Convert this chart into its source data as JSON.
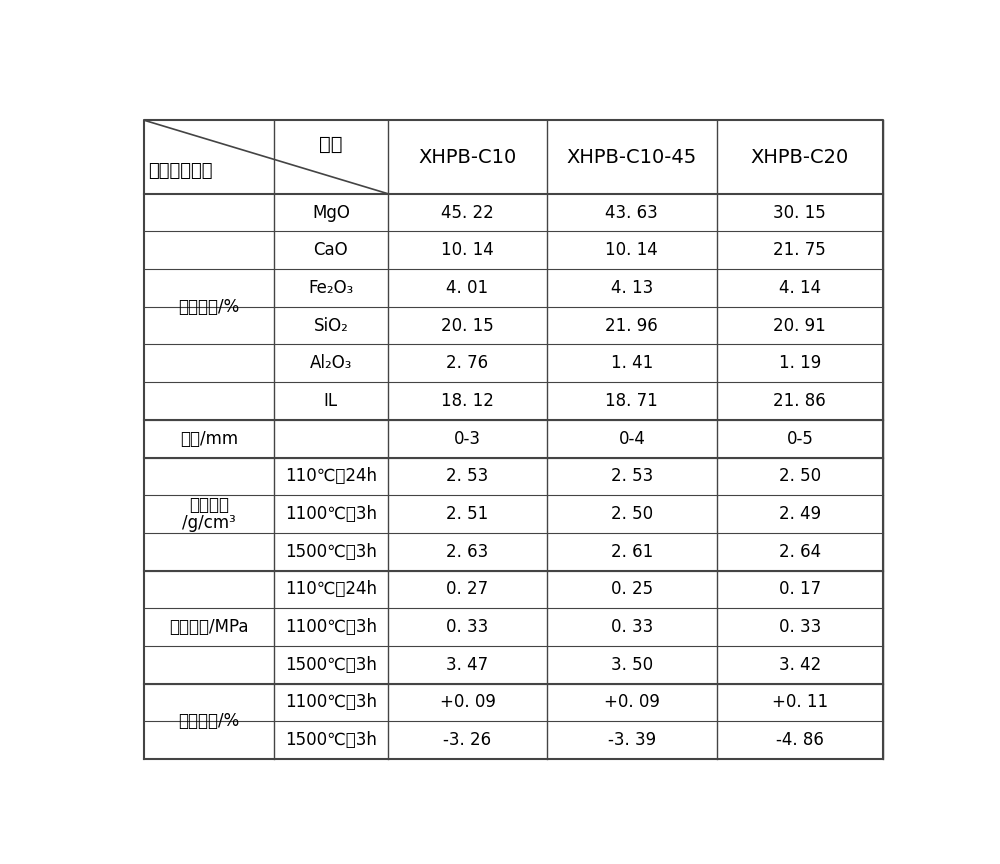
{
  "header_label_top": "牌号",
  "header_label_bottom": "检测项目指标",
  "col_headers": [
    "XHPB-C10",
    "XHPB-C10-45",
    "XHPB-C20"
  ],
  "sections": [
    {
      "section_label": "化学成分/%",
      "rows": [
        {
          "sub_label": "MgO",
          "values": [
            "45. 22",
            "43. 63",
            "30. 15"
          ]
        },
        {
          "sub_label": "CaO",
          "values": [
            "10. 14",
            "10. 14",
            "21. 75"
          ]
        },
        {
          "sub_label": "Fe₂O₃",
          "values": [
            "4. 01",
            "4. 13",
            "4. 14"
          ]
        },
        {
          "sub_label": "SiO₂",
          "values": [
            "20. 15",
            "21. 96",
            "20. 91"
          ]
        },
        {
          "sub_label": "Al₂O₃",
          "values": [
            "2. 76",
            "1. 41",
            "1. 19"
          ]
        },
        {
          "sub_label": "IL",
          "values": [
            "18. 12",
            "18. 71",
            "21. 86"
          ]
        }
      ]
    },
    {
      "section_label": "粒度/mm",
      "rows": [
        {
          "sub_label": "",
          "values": [
            "0-3",
            "0-4",
            "0-5"
          ]
        }
      ]
    },
    {
      "section_label": "体积密度/g/cm³",
      "rows": [
        {
          "sub_label": "110℃，24h",
          "values": [
            "2. 53",
            "2. 53",
            "2. 50"
          ]
        },
        {
          "sub_label": "1100℃，3h",
          "values": [
            "2. 51",
            "2. 50",
            "2. 49"
          ]
        },
        {
          "sub_label": "1500℃，3h",
          "values": [
            "2. 63",
            "2. 61",
            "2. 64"
          ]
        }
      ]
    },
    {
      "section_label": "抗折强度/MPa",
      "rows": [
        {
          "sub_label": "110℃，24h",
          "values": [
            "0. 27",
            "0. 25",
            "0. 17"
          ]
        },
        {
          "sub_label": "1100℃，3h",
          "values": [
            "0. 33",
            "0. 33",
            "0. 33"
          ]
        },
        {
          "sub_label": "1500℃，3h",
          "values": [
            "3. 47",
            "3. 50",
            "3. 42"
          ]
        }
      ]
    },
    {
      "section_label": "线变化率/%",
      "rows": [
        {
          "sub_label": "1100℃，3h",
          "values": [
            "+0. 09",
            "+0. 09",
            "+0. 11"
          ]
        },
        {
          "sub_label": "1500℃，3h",
          "values": [
            "-3. 26",
            "-3. 39",
            "-4. 86"
          ]
        }
      ]
    }
  ],
  "bg_color": "#ffffff",
  "line_color": "#444444",
  "text_color": "#000000",
  "font_size": 13,
  "header_font_size": 14,
  "fig_width": 10.0,
  "fig_height": 8.64,
  "dpi": 100
}
